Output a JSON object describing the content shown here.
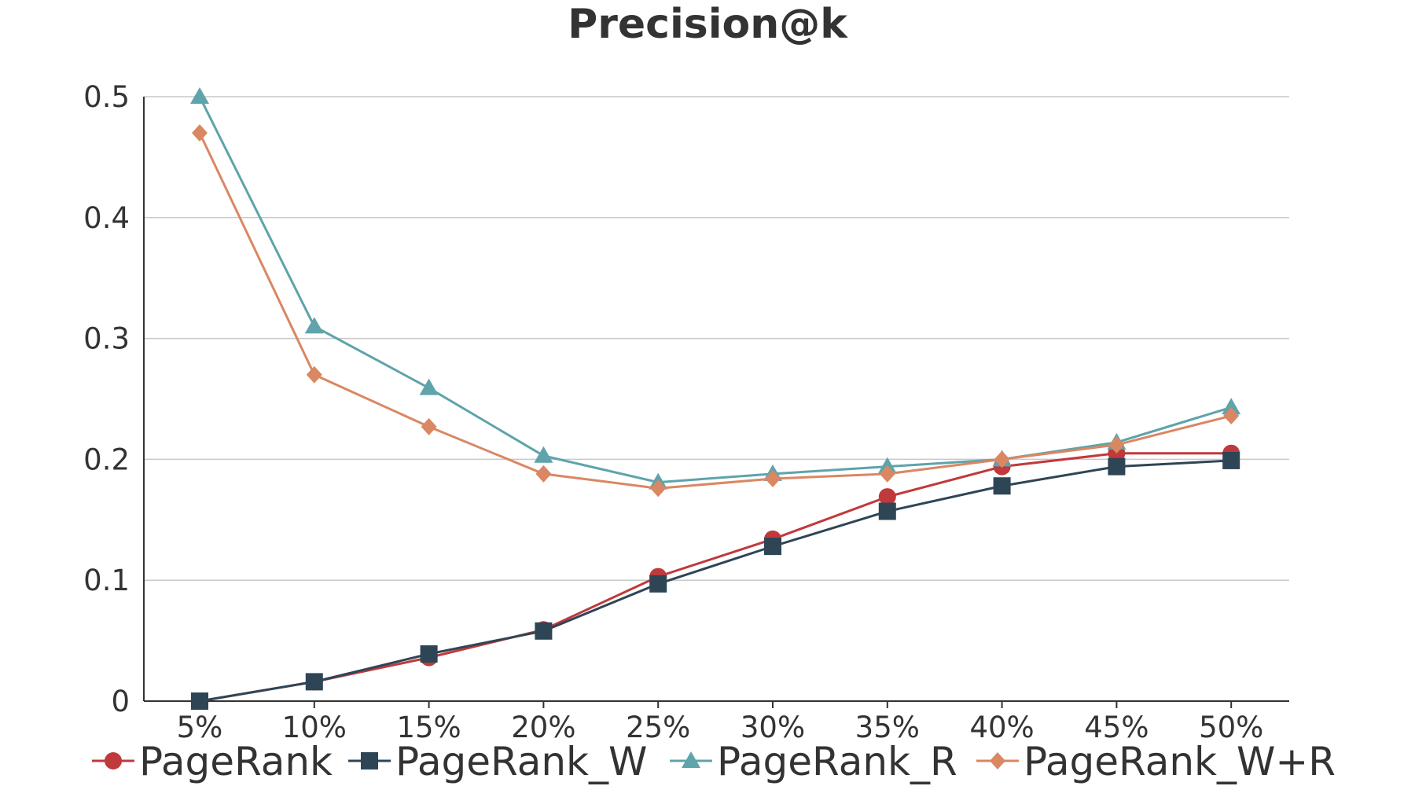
{
  "chart_data": {
    "type": "line",
    "title": "Precision@k",
    "xlabel": "",
    "ylabel": "",
    "categories": [
      "5%",
      "10%",
      "15%",
      "20%",
      "25%",
      "30%",
      "35%",
      "40%",
      "45%",
      "50%"
    ],
    "ylim": [
      0,
      0.5
    ],
    "yticks": [
      0,
      0.1,
      0.2,
      0.3,
      0.4,
      0.5
    ],
    "ytick_labels": [
      "0",
      "0.1",
      "0.2",
      "0.3",
      "0.4",
      "0.5"
    ],
    "grid": true,
    "legend_position": "bottom",
    "series": [
      {
        "name": "PageRank",
        "color": "#c0393b",
        "marker": "circle",
        "values": [
          0.0,
          0.016,
          0.036,
          0.059,
          0.103,
          0.134,
          0.169,
          0.194,
          0.205,
          0.205
        ]
      },
      {
        "name": "PageRank_W",
        "color": "#2e4556",
        "marker": "square",
        "values": [
          0.0,
          0.016,
          0.039,
          0.058,
          0.097,
          0.128,
          0.157,
          0.178,
          0.194,
          0.199
        ]
      },
      {
        "name": "PageRank_R",
        "color": "#5fa3ab",
        "marker": "triangle",
        "values": [
          0.5,
          0.31,
          0.259,
          0.203,
          0.181,
          0.188,
          0.194,
          0.2,
          0.214,
          0.243
        ]
      },
      {
        "name": "PageRank_W+R",
        "color": "#da8763",
        "marker": "diamond",
        "values": [
          0.47,
          0.27,
          0.227,
          0.188,
          0.176,
          0.184,
          0.188,
          0.2,
          0.212,
          0.236
        ]
      }
    ]
  }
}
